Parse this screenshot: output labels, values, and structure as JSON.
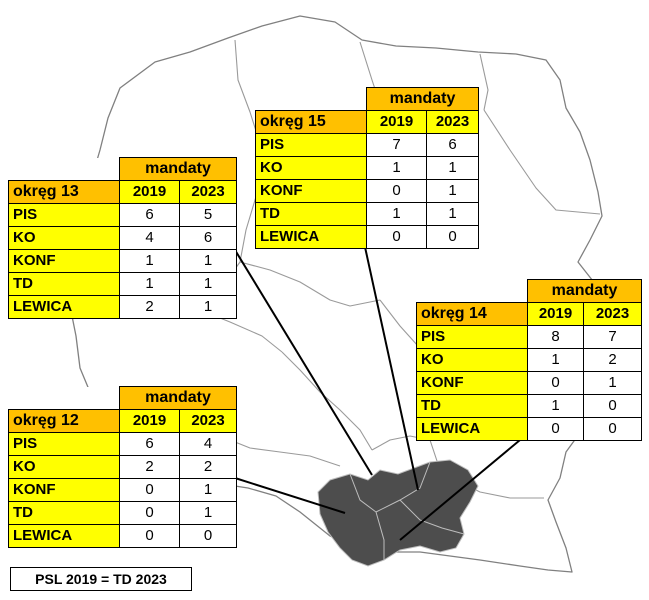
{
  "map": {
    "country_fill": "#ffffff",
    "border_color": "#808080",
    "highlight_fill": "#4d4d4d"
  },
  "colors": {
    "header_orange": "#ffc000",
    "row_yellow": "#ffff00"
  },
  "footnote": "PSL 2019 = TD 2023",
  "tables": [
    {
      "id": "okreg15",
      "header": "mandaty",
      "district": "okręg 15",
      "years": [
        "2019",
        "2023"
      ],
      "rows": [
        {
          "party": "PIS",
          "v2019": "7",
          "v2023": "6"
        },
        {
          "party": "KO",
          "v2019": "1",
          "v2023": "1"
        },
        {
          "party": "KONF",
          "v2019": "0",
          "v2023": "1"
        },
        {
          "party": "TD",
          "v2019": "1",
          "v2023": "1"
        },
        {
          "party": "LEWICA",
          "v2019": "0",
          "v2023": "0"
        }
      ]
    },
    {
      "id": "okreg13",
      "header": "mandaty",
      "district": "okręg 13",
      "years": [
        "2019",
        "2023"
      ],
      "rows": [
        {
          "party": "PIS",
          "v2019": "6",
          "v2023": "5"
        },
        {
          "party": "KO",
          "v2019": "4",
          "v2023": "6"
        },
        {
          "party": "KONF",
          "v2019": "1",
          "v2023": "1"
        },
        {
          "party": "TD",
          "v2019": "1",
          "v2023": "1"
        },
        {
          "party": "LEWICA",
          "v2019": "2",
          "v2023": "1"
        }
      ]
    },
    {
      "id": "okreg14",
      "header": "mandaty",
      "district": "okręg 14",
      "years": [
        "2019",
        "2023"
      ],
      "rows": [
        {
          "party": "PIS",
          "v2019": "8",
          "v2023": "7"
        },
        {
          "party": "KO",
          "v2019": "1",
          "v2023": "2"
        },
        {
          "party": "KONF",
          "v2019": "0",
          "v2023": "1"
        },
        {
          "party": "TD",
          "v2019": "1",
          "v2023": "0"
        },
        {
          "party": "LEWICA",
          "v2019": "0",
          "v2023": "0"
        }
      ]
    },
    {
      "id": "okreg12",
      "header": "mandaty",
      "district": "okręg 12",
      "years": [
        "2019",
        "2023"
      ],
      "rows": [
        {
          "party": "PIS",
          "v2019": "6",
          "v2023": "4"
        },
        {
          "party": "KO",
          "v2019": "2",
          "v2023": "2"
        },
        {
          "party": "KONF",
          "v2019": "0",
          "v2023": "1"
        },
        {
          "party": "TD",
          "v2019": "0",
          "v2023": "1"
        },
        {
          "party": "LEWICA",
          "v2019": "0",
          "v2023": "0"
        }
      ]
    }
  ]
}
